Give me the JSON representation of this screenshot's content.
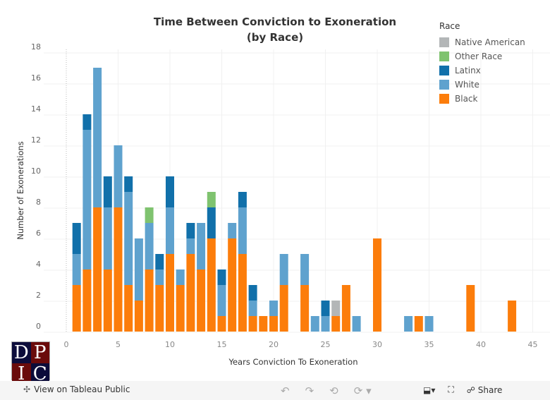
{
  "chart_data": {
    "type": "bar",
    "stacked": true,
    "title": "Time Between Conviction to Exoneration",
    "subtitle": "(by Race)",
    "xlabel": "Years Conviction To Exoneration",
    "ylabel": "Number of Exonerations",
    "xlim": [
      -2,
      46
    ],
    "ylim": [
      0,
      18
    ],
    "xticks": [
      0,
      5,
      10,
      15,
      20,
      25,
      30,
      35,
      40,
      45
    ],
    "yticks": [
      0,
      2,
      4,
      6,
      8,
      10,
      12,
      14,
      16,
      18
    ],
    "legend_title": "Race",
    "legend_position": "top-right",
    "series_order_legend": [
      "Native American",
      "Other Race",
      "Latinx",
      "White",
      "Black"
    ],
    "colors": {
      "Black": "#fc7d0b",
      "White": "#5fa2ce",
      "Latinx": "#1170aa",
      "Other Race": "#7fc36f",
      "Native American": "#b3b6b7"
    },
    "x": [
      1,
      2,
      3,
      4,
      5,
      6,
      7,
      8,
      9,
      10,
      11,
      12,
      13,
      14,
      15,
      16,
      17,
      18,
      19,
      20,
      21,
      23,
      24,
      25,
      26,
      27,
      28,
      30,
      33,
      34,
      35,
      39,
      43
    ],
    "series": [
      {
        "name": "Black",
        "values": [
          3,
          4,
          8,
          4,
          8,
          3,
          2,
          4,
          3,
          5,
          3,
          5,
          4,
          6,
          1,
          6,
          5,
          1,
          1,
          1,
          3,
          3,
          0,
          0,
          1,
          3,
          0,
          6,
          0,
          1,
          0,
          3,
          2
        ]
      },
      {
        "name": "White",
        "values": [
          2,
          9,
          9,
          4,
          4,
          6,
          4,
          3,
          1,
          3,
          1,
          1,
          3,
          0,
          2,
          1,
          3,
          1,
          0,
          1,
          2,
          2,
          1,
          1,
          0,
          0,
          1,
          0,
          1,
          0,
          1,
          0,
          0
        ]
      },
      {
        "name": "Latinx",
        "values": [
          2,
          1,
          0,
          2,
          0,
          1,
          0,
          0,
          1,
          2,
          0,
          1,
          0,
          2,
          1,
          0,
          1,
          1,
          0,
          0,
          0,
          0,
          0,
          1,
          0,
          0,
          0,
          0,
          0,
          0,
          0,
          0,
          0
        ]
      },
      {
        "name": "Other Race",
        "values": [
          0,
          0,
          0,
          0,
          0,
          0,
          0,
          1,
          0,
          0,
          0,
          0,
          0,
          1,
          0,
          0,
          0,
          0,
          0,
          0,
          0,
          0,
          0,
          0,
          0,
          0,
          0,
          0,
          0,
          0,
          0,
          0,
          0
        ]
      },
      {
        "name": "Native American",
        "values": [
          0,
          0,
          0,
          0,
          0,
          0,
          0,
          0,
          0,
          0,
          0,
          0,
          0,
          0,
          0,
          0,
          0,
          0,
          0,
          0,
          0,
          0,
          0,
          0,
          1,
          0,
          0,
          0,
          0,
          0,
          0,
          0,
          0
        ]
      }
    ]
  },
  "logo": {
    "letters": [
      "D",
      "P",
      "I",
      "C"
    ]
  },
  "toolbar": {
    "view_label": "View on Tableau Public",
    "share_label": "Share"
  }
}
